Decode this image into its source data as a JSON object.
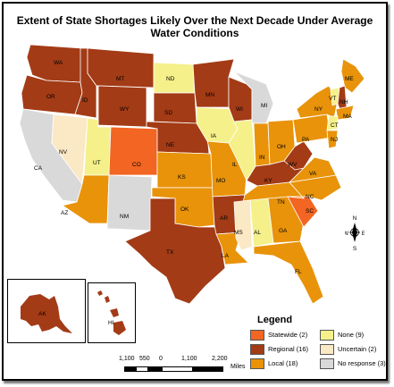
{
  "title": "Extent of State Shortages Likely Over the Next Decade Under Average Water Conditions",
  "colors": {
    "statewide": "#f26522",
    "regional": "#a33b16",
    "local": "#e8930a",
    "none": "#f5f08a",
    "uncertain": "#fbe8c4",
    "no_response": "#d9d9d9"
  },
  "legend": {
    "title": "Legend",
    "items": [
      {
        "key": "statewide",
        "label": "Statewide (2)"
      },
      {
        "key": "regional",
        "label": "Regional (16)"
      },
      {
        "key": "local",
        "label": "Local (18)"
      },
      {
        "key": "none",
        "label": "None (9)"
      },
      {
        "key": "uncertain",
        "label": "Uncertain (2)"
      },
      {
        "key": "no_response",
        "label": "No response (3)"
      }
    ]
  },
  "states": [
    {
      "abbr": "WA",
      "category": "regional"
    },
    {
      "abbr": "OR",
      "category": "regional"
    },
    {
      "abbr": "ID",
      "category": "regional"
    },
    {
      "abbr": "MT",
      "category": "regional"
    },
    {
      "abbr": "WY",
      "category": "regional"
    },
    {
      "abbr": "CA",
      "category": "no_response"
    },
    {
      "abbr": "NV",
      "category": "uncertain"
    },
    {
      "abbr": "UT",
      "category": "none"
    },
    {
      "abbr": "AZ",
      "category": "local"
    },
    {
      "abbr": "CO",
      "category": "statewide"
    },
    {
      "abbr": "NM",
      "category": "no_response"
    },
    {
      "abbr": "ND",
      "category": "none"
    },
    {
      "abbr": "SD",
      "category": "regional"
    },
    {
      "abbr": "NE",
      "category": "regional"
    },
    {
      "abbr": "KS",
      "category": "local"
    },
    {
      "abbr": "OK",
      "category": "local"
    },
    {
      "abbr": "TX",
      "category": "regional"
    },
    {
      "abbr": "MN",
      "category": "regional"
    },
    {
      "abbr": "IA",
      "category": "none"
    },
    {
      "abbr": "MO",
      "category": "local"
    },
    {
      "abbr": "AR",
      "category": "regional"
    },
    {
      "abbr": "LA",
      "category": "local"
    },
    {
      "abbr": "WI",
      "category": "regional"
    },
    {
      "abbr": "IL",
      "category": "none"
    },
    {
      "abbr": "MI",
      "category": "no_response"
    },
    {
      "abbr": "IN",
      "category": "local"
    },
    {
      "abbr": "OH",
      "category": "local"
    },
    {
      "abbr": "KY",
      "category": "regional"
    },
    {
      "abbr": "TN",
      "category": "local"
    },
    {
      "abbr": "MS",
      "category": "uncertain"
    },
    {
      "abbr": "AL",
      "category": "none"
    },
    {
      "abbr": "GA",
      "category": "local"
    },
    {
      "abbr": "FL",
      "category": "local"
    },
    {
      "abbr": "SC",
      "category": "statewide"
    },
    {
      "abbr": "NC",
      "category": "local"
    },
    {
      "abbr": "VA",
      "category": "local"
    },
    {
      "abbr": "WV",
      "category": "regional"
    },
    {
      "abbr": "PA",
      "category": "local"
    },
    {
      "abbr": "NY",
      "category": "local"
    },
    {
      "abbr": "ME",
      "category": "local"
    },
    {
      "abbr": "VT",
      "category": "none"
    },
    {
      "abbr": "NH",
      "category": "regional"
    },
    {
      "abbr": "MA",
      "category": "local"
    },
    {
      "abbr": "CT",
      "category": "none"
    },
    {
      "abbr": "NJ",
      "category": "local"
    },
    {
      "abbr": "AK",
      "category": "regional"
    },
    {
      "abbr": "HI",
      "category": "regional"
    }
  ],
  "scale_bar": {
    "ticks": [
      "1,100",
      "550",
      "0",
      "1,100",
      "2,200"
    ],
    "unit": "Miles"
  },
  "compass": {
    "n": "N",
    "s": "S",
    "e": "E",
    "w": "W"
  }
}
